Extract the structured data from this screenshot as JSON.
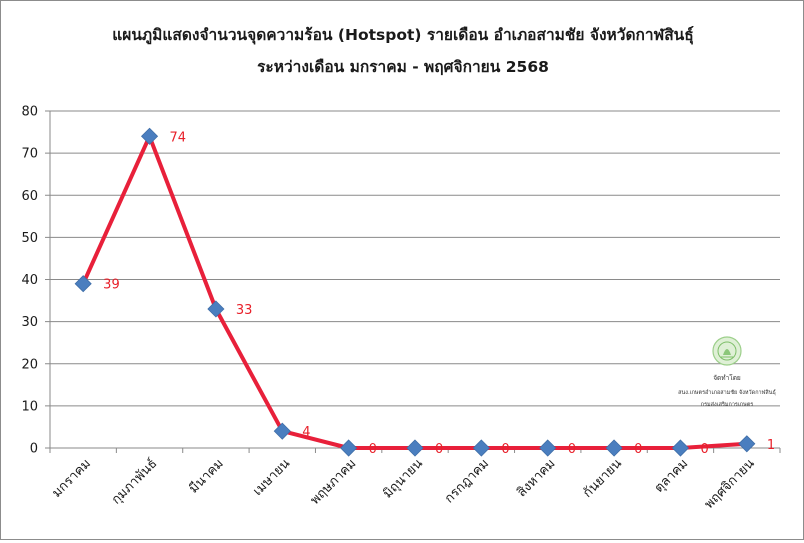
{
  "chart_data": {
    "type": "line",
    "title": [
      "แผนภูมิแสดงจำนวนจุดความร้อน (Hotspot) รายเดือน อำเภอสามชัย  จังหวัดกาฬสินธุ์",
      "ระหว่างเดือน มกราคม - พฤศจิกายน 2568"
    ],
    "xlabel": "",
    "ylabel": "",
    "categories": [
      "มกราคม",
      "กุมภาพันธ์",
      "มีนาคม",
      "เมษายน",
      "พฤษภาคม",
      "มิถุนายน",
      "กรกฎาคม",
      "สิงหาคม",
      "กันยายน",
      "ตุลาคม",
      "พฤศจิกายน"
    ],
    "values": [
      39,
      74,
      33,
      4,
      0,
      0,
      0,
      0,
      0,
      0,
      1
    ],
    "ylim": [
      0,
      80
    ],
    "yticks": [
      0,
      10,
      20,
      30,
      40,
      50,
      60,
      70,
      80
    ],
    "grid": true,
    "legend": "none",
    "line_color": "#e8203a",
    "marker_color": "#4a7ebf",
    "label_color": "#e8202a"
  },
  "watermark": {
    "lines": [
      "จัดทำโดย",
      "สนง.เกษตรอำเภอสามชัย  จังหวัดกาฬสินธุ์",
      "กรมส่งเสริมการเกษตร"
    ]
  }
}
